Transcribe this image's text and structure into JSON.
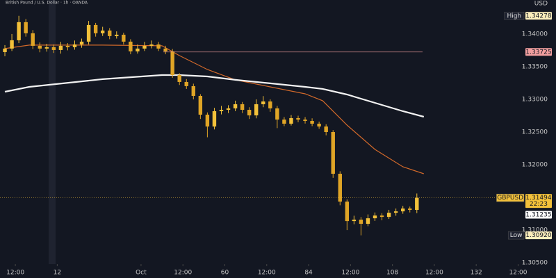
{
  "chart_data": {
    "type": "candlestick",
    "title": "British Pound / U.S. Dollar · 1h · OANDA",
    "currency": "USD",
    "up_color": "#f3c13a",
    "down_color": "#e0a526",
    "x": [
      -3,
      -1,
      1,
      3,
      5,
      7,
      9,
      11,
      13,
      15,
      17,
      19,
      21,
      23,
      25,
      27,
      29,
      31,
      33,
      35,
      37,
      39,
      41,
      43,
      45,
      47,
      49,
      51,
      53,
      55,
      57,
      59,
      61,
      63,
      65,
      67,
      69,
      71,
      73,
      75,
      77,
      79,
      81,
      83,
      85,
      87,
      89,
      91,
      93,
      95,
      97,
      99,
      101,
      103,
      105,
      107,
      109,
      111,
      113,
      115
    ],
    "open": [
      1.33723,
      1.33777,
      1.33904,
      1.34181,
      1.34011,
      1.33819,
      1.33777,
      1.33798,
      1.33755,
      1.33819,
      1.33798,
      1.3384,
      1.33883,
      1.34138,
      1.34011,
      1.34053,
      1.33968,
      1.33989,
      1.33883,
      1.33734,
      1.33777,
      1.33819,
      1.3384,
      1.33777,
      1.33734,
      1.33372,
      1.33266,
      1.33202,
      1.33053,
      1.32766,
      1.32585,
      1.32819,
      1.3284,
      1.32862,
      1.32926,
      1.3284,
      1.32755,
      1.32926,
      1.32968,
      1.32862,
      1.32691,
      1.32628,
      1.32713,
      1.32691,
      1.3267,
      1.32628,
      1.32585,
      1.325,
      1.31862,
      1.31436,
      1.31138,
      1.3116,
      1.31096,
      1.31181,
      1.31223,
      1.31202,
      1.31266,
      1.31287,
      1.3133,
      1.31309
    ],
    "high": [
      1.3383,
      1.34,
      1.34278,
      1.3423,
      1.3406,
      1.3387,
      1.3385,
      1.3384,
      1.3388,
      1.3386,
      1.339,
      1.3393,
      1.342,
      1.3417,
      1.3411,
      1.3409,
      1.3404,
      1.3402,
      1.3392,
      1.3384,
      1.3388,
      1.339,
      1.3388,
      1.3382,
      1.3377,
      1.334,
      1.3331,
      1.3324,
      1.3308,
      1.328,
      1.3287,
      1.329,
      1.3291,
      1.3298,
      1.3296,
      1.3288,
      1.33,
      1.3305,
      1.33,
      1.329,
      1.3273,
      1.3276,
      1.3275,
      1.3273,
      1.3271,
      1.3266,
      1.3262,
      1.3253,
      1.319,
      1.3147,
      1.3122,
      1.312,
      1.3124,
      1.3127,
      1.3126,
      1.3131,
      1.3133,
      1.3137,
      1.3136,
      1.3156
    ],
    "low": [
      1.3366,
      1.3374,
      1.3386,
      1.3396,
      1.3377,
      1.3372,
      1.3373,
      1.3371,
      1.337,
      1.3375,
      1.3376,
      1.3379,
      1.3384,
      1.3396,
      1.3397,
      1.3392,
      1.3393,
      1.3384,
      1.3369,
      1.337,
      1.3374,
      1.3378,
      1.3374,
      1.3369,
      1.3333,
      1.3322,
      1.3316,
      1.33,
      1.327,
      1.3242,
      1.3254,
      1.3277,
      1.3279,
      1.3282,
      1.3279,
      1.327,
      1.3271,
      1.3288,
      1.3281,
      1.3256,
      1.3259,
      1.326,
      1.3265,
      1.3263,
      1.3259,
      1.3255,
      1.3245,
      1.318,
      1.3138,
      1.31,
      1.3109,
      1.3092,
      1.3106,
      1.3114,
      1.3115,
      1.3117,
      1.3122,
      1.3125,
      1.3127,
      1.3126
    ],
    "close": [
      1.33777,
      1.33904,
      1.34181,
      1.34011,
      1.33819,
      1.33777,
      1.33798,
      1.33755,
      1.33819,
      1.33798,
      1.3384,
      1.33883,
      1.34138,
      1.34011,
      1.34053,
      1.33968,
      1.33989,
      1.33883,
      1.33734,
      1.33777,
      1.33819,
      1.3384,
      1.33777,
      1.33734,
      1.33372,
      1.33266,
      1.33202,
      1.33053,
      1.32766,
      1.32585,
      1.32819,
      1.3284,
      1.32862,
      1.32926,
      1.3284,
      1.32755,
      1.32926,
      1.32968,
      1.32862,
      1.32691,
      1.32628,
      1.32713,
      1.32691,
      1.3267,
      1.32628,
      1.32585,
      1.325,
      1.31862,
      1.31436,
      1.31138,
      1.3116,
      1.31096,
      1.31181,
      1.31223,
      1.31202,
      1.31266,
      1.31287,
      1.3133,
      1.31309,
      1.31494
    ],
    "series": [
      {
        "color": "#d2692a",
        "x": [
          -3,
          4,
          25,
          42,
          47,
          55,
          63,
          73,
          83,
          88,
          95,
          103,
          111,
          117
        ],
        "values": [
          1.33777,
          1.3383,
          1.3383,
          1.33819,
          1.3367,
          1.33457,
          1.33298,
          1.33191,
          1.33085,
          1.32979,
          1.32606,
          1.32234,
          1.31968,
          1.31862
        ]
      },
      {
        "color": "#f2f2f2",
        "x": [
          -3,
          4,
          25,
          42,
          47,
          55,
          63,
          73,
          83,
          88,
          95,
          103,
          111,
          117
        ],
        "values": [
          1.33117,
          1.33191,
          1.33309,
          1.33372,
          1.33372,
          1.33351,
          1.33298,
          1.33245,
          1.33191,
          1.3316,
          1.33074,
          1.32947,
          1.32819,
          1.32734
        ]
      }
    ],
    "xlim": [
      -4.4,
      145.3
    ],
    "xticks": [
      {
        "value": 0,
        "label": "12:00"
      },
      12,
      {
        "value": 36,
        "label": "Oct"
      },
      {
        "value": 48,
        "label": "12:00"
      },
      60,
      {
        "value": 72,
        "label": "12:00"
      },
      84,
      {
        "value": 96,
        "label": "12:00"
      },
      108,
      {
        "value": 120,
        "label": "12:00"
      },
      132,
      {
        "value": 144,
        "label": "12:00"
      }
    ],
    "ylim": [
      1.3048,
      1.3452
    ],
    "yticks": [
      {
        "value": 1.305,
        "label": "1.30500"
      },
      {
        "value": 1.31,
        "label": "1.31000"
      },
      {
        "value": 1.32,
        "label": "1.32000"
      },
      {
        "value": 1.325,
        "label": "1.32500"
      },
      {
        "value": 1.33,
        "label": "1.33000"
      },
      {
        "value": 1.335,
        "label": "1.33500"
      },
      {
        "value": 1.34,
        "label": "1.34000"
      }
    ],
    "price_tags": [
      {
        "name": "High",
        "value": 1.34278,
        "color": "#fbeebc"
      },
      {
        "value": 1.33725,
        "color": "#f3a0a0"
      },
      {
        "name": "GBPUSD",
        "value": 1.31494,
        "countdown": "22:23",
        "color": "#f3c13a"
      },
      {
        "value": 1.31235,
        "color": "#ffffff"
      },
      {
        "name": "Low",
        "value": {
          "value": 1.3092,
          "label": "1.30920"
        },
        "color": "#fbeebc"
      }
    ]
  }
}
